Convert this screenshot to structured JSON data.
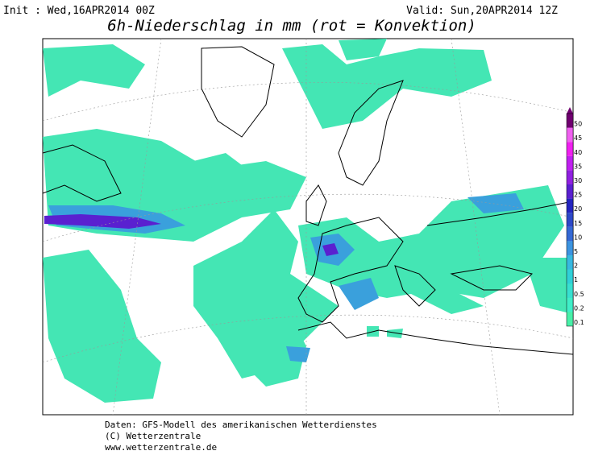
{
  "header": {
    "init": "Init : Wed,16APR2014 00Z",
    "valid": "Valid: Sun,20APR2014 12Z",
    "title": "6h-Niederschlag in mm (rot = Konvektion)"
  },
  "legend": {
    "levels": [
      0.1,
      0.2,
      0.5,
      1,
      2,
      5,
      10,
      15,
      20,
      25,
      30,
      35,
      40,
      45,
      50
    ],
    "colors": [
      "#48f0a8",
      "#40eec8",
      "#38e0d0",
      "#30d0d8",
      "#38b8e0",
      "#3c94e0",
      "#3468d4",
      "#2c48c8",
      "#2424c0",
      "#5a20d0",
      "#9020e0",
      "#c020f0",
      "#f020f0",
      "#f060f0",
      "#700070"
    ]
  },
  "footer": {
    "lines": [
      "Daten: GFS-Modell des amerikanischen Wetterdienstes",
      "(C) Wetterzentrale",
      "www.wetterzentrale.de"
    ]
  }
}
